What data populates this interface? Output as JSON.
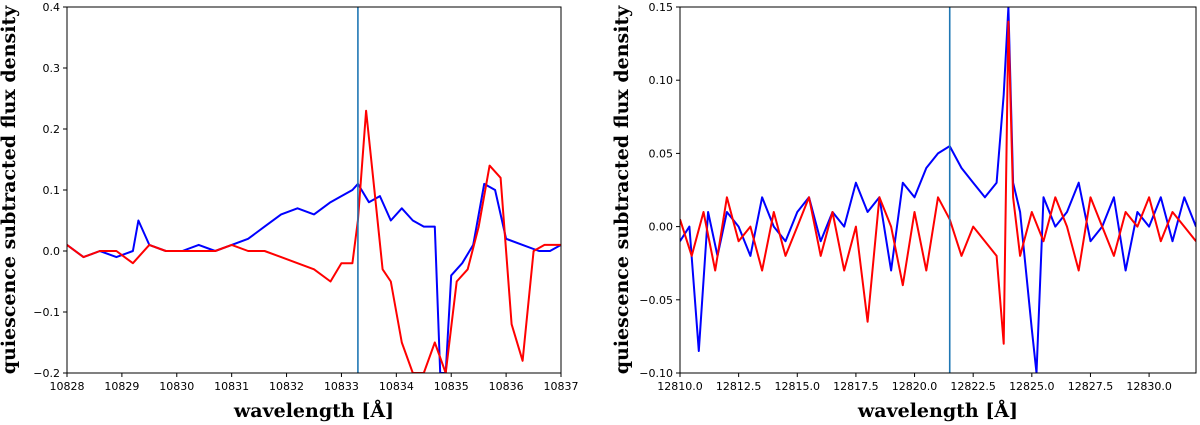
{
  "colors": {
    "series_a": "#0000ff",
    "series_b": "#ff0000",
    "marker": "#1f77b4",
    "axis": "#000000"
  },
  "chart_data": [
    {
      "type": "line",
      "xlabel": "wavelength [Å]",
      "ylabel": "quiescence subtracted flux density",
      "xlim": [
        10828,
        10837
      ],
      "ylim": [
        -0.2,
        0.4
      ],
      "xticks": [
        10828,
        10829,
        10830,
        10831,
        10832,
        10833,
        10834,
        10835,
        10836,
        10837
      ],
      "xtick_labels": [
        "10828",
        "10829",
        "10830",
        "10831",
        "10832",
        "10833",
        "10834",
        "10835",
        "10836",
        "10837"
      ],
      "yticks": [
        -0.2,
        -0.1,
        0.0,
        0.1,
        0.2,
        0.3,
        0.4
      ],
      "ytick_labels": [
        "−0.2",
        "−0.1",
        "0.0",
        "0.1",
        "0.2",
        "0.3",
        "0.4"
      ],
      "vline": 10833.3,
      "grid": false,
      "series": [
        {
          "color": "blue",
          "x": [
            10828.0,
            10828.3,
            10828.6,
            10828.9,
            10829.2,
            10829.3,
            10829.5,
            10829.8,
            10830.1,
            10830.4,
            10830.7,
            10831.0,
            10831.3,
            10831.6,
            10831.9,
            10832.2,
            10832.5,
            10832.8,
            10833.0,
            10833.2,
            10833.3,
            10833.5,
            10833.7,
            10833.9,
            10834.1,
            10834.3,
            10834.5,
            10834.7,
            10834.8,
            10834.9,
            10835.0,
            10835.2,
            10835.4,
            10835.6,
            10835.8,
            10836.0,
            10836.3,
            10836.6,
            10836.8,
            10837.0
          ],
          "y": [
            0.01,
            -0.01,
            0.0,
            -0.01,
            0.0,
            0.05,
            0.01,
            0.0,
            0.0,
            0.01,
            0.0,
            0.01,
            0.02,
            0.04,
            0.06,
            0.07,
            0.06,
            0.08,
            0.09,
            0.1,
            0.11,
            0.08,
            0.09,
            0.05,
            0.07,
            0.05,
            0.04,
            0.04,
            -0.2,
            -0.2,
            -0.04,
            -0.02,
            0.01,
            0.11,
            0.1,
            0.02,
            0.01,
            0.0,
            0.0,
            0.01
          ]
        },
        {
          "color": "red",
          "x": [
            10828.0,
            10828.3,
            10828.6,
            10828.9,
            10829.2,
            10829.5,
            10829.8,
            10830.1,
            10830.4,
            10830.7,
            10831.0,
            10831.3,
            10831.6,
            10831.9,
            10832.2,
            10832.5,
            10832.8,
            10833.0,
            10833.2,
            10833.3,
            10833.45,
            10833.6,
            10833.75,
            10833.9,
            10834.1,
            10834.3,
            10834.5,
            10834.7,
            10834.9,
            10835.1,
            10835.3,
            10835.5,
            10835.7,
            10835.9,
            10836.1,
            10836.3,
            10836.5,
            10836.7,
            10837.0
          ],
          "y": [
            0.01,
            -0.01,
            0.0,
            0.0,
            -0.02,
            0.01,
            0.0,
            0.0,
            0.0,
            0.0,
            0.01,
            0.0,
            0.0,
            -0.01,
            -0.02,
            -0.03,
            -0.05,
            -0.02,
            -0.02,
            0.05,
            0.23,
            0.1,
            -0.03,
            -0.05,
            -0.15,
            -0.2,
            -0.2,
            -0.15,
            -0.2,
            -0.05,
            -0.03,
            0.04,
            0.14,
            0.12,
            -0.12,
            -0.18,
            0.0,
            0.01,
            0.01
          ]
        }
      ]
    },
    {
      "type": "line",
      "xlabel": "wavelength [Å]",
      "ylabel": "quiescence subtracted flux density",
      "xlim": [
        12810,
        12832
      ],
      "ylim": [
        -0.1,
        0.15
      ],
      "xticks": [
        12810.0,
        12812.5,
        12815.0,
        12817.5,
        12820.0,
        12822.5,
        12825.0,
        12827.5,
        12830.0
      ],
      "xtick_labels": [
        "12810.0",
        "12812.5",
        "12815.0",
        "12817.5",
        "12820.0",
        "12822.5",
        "12825.0",
        "12827.5",
        "12830.0"
      ],
      "yticks": [
        -0.1,
        -0.05,
        0.0,
        0.05,
        0.1,
        0.15
      ],
      "ytick_labels": [
        "−0.10",
        "−0.05",
        "0.00",
        "0.05",
        "0.10",
        "0.15"
      ],
      "vline": 12821.5,
      "grid": false,
      "series": [
        {
          "color": "blue",
          "x": [
            12810.0,
            12810.4,
            12810.8,
            12811.2,
            12811.6,
            12812.0,
            12812.5,
            12813.0,
            12813.5,
            12814.0,
            12814.5,
            12815.0,
            12815.5,
            12816.0,
            12816.5,
            12817.0,
            12817.5,
            12818.0,
            12818.5,
            12819.0,
            12819.5,
            12820.0,
            12820.5,
            12821.0,
            12821.5,
            12822.0,
            12822.5,
            12823.0,
            12823.5,
            12823.8,
            12824.0,
            12824.2,
            12824.5,
            12825.0,
            12825.2,
            12825.5,
            12826.0,
            12826.5,
            12827.0,
            12827.5,
            12828.0,
            12828.5,
            12829.0,
            12829.5,
            12830.0,
            12830.5,
            12831.0,
            12831.5,
            12832.0
          ],
          "y": [
            -0.01,
            0.0,
            -0.085,
            0.01,
            -0.02,
            0.01,
            0.0,
            -0.02,
            0.02,
            0.0,
            -0.01,
            0.01,
            0.02,
            -0.01,
            0.01,
            0.0,
            0.03,
            0.01,
            0.02,
            -0.03,
            0.03,
            0.02,
            0.04,
            0.05,
            0.055,
            0.04,
            0.03,
            0.02,
            0.03,
            0.09,
            0.15,
            0.03,
            0.01,
            -0.07,
            -0.1,
            0.02,
            0.0,
            0.01,
            0.03,
            -0.01,
            0.0,
            0.02,
            -0.03,
            0.01,
            0.0,
            0.02,
            -0.01,
            0.02,
            0.0
          ]
        },
        {
          "color": "red",
          "x": [
            12810.0,
            12810.5,
            12811.0,
            12811.5,
            12812.0,
            12812.5,
            12813.0,
            12813.5,
            12814.0,
            12814.5,
            12815.0,
            12815.5,
            12816.0,
            12816.5,
            12817.0,
            12817.5,
            12818.0,
            12818.5,
            12819.0,
            12819.5,
            12820.0,
            12820.5,
            12821.0,
            12821.5,
            12822.0,
            12822.5,
            12823.0,
            12823.5,
            12823.8,
            12824.0,
            12824.2,
            12824.5,
            12825.0,
            12825.5,
            12826.0,
            12826.5,
            12827.0,
            12827.5,
            12828.0,
            12828.5,
            12829.0,
            12829.5,
            12830.0,
            12830.5,
            12831.0,
            12831.5,
            12832.0
          ],
          "y": [
            0.005,
            -0.02,
            0.01,
            -0.03,
            0.02,
            -0.01,
            0.0,
            -0.03,
            0.01,
            -0.02,
            0.0,
            0.02,
            -0.02,
            0.01,
            -0.03,
            0.0,
            -0.065,
            0.02,
            0.0,
            -0.04,
            0.01,
            -0.03,
            0.02,
            0.005,
            -0.02,
            0.0,
            -0.01,
            -0.02,
            -0.08,
            0.14,
            0.02,
            -0.02,
            0.01,
            -0.01,
            0.02,
            0.0,
            -0.03,
            0.02,
            0.0,
            -0.02,
            0.01,
            0.0,
            0.02,
            -0.01,
            0.01,
            0.0,
            -0.01
          ]
        }
      ]
    }
  ]
}
